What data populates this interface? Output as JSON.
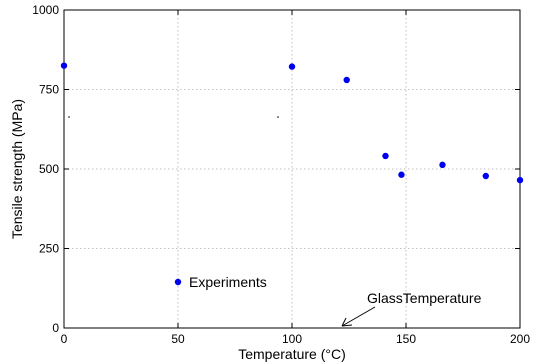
{
  "chart_data": {
    "type": "scatter",
    "xlabel": "Temperature (°C)",
    "ylabel": "Tensile strength (MPa)",
    "xlim": [
      0,
      200
    ],
    "ylim": [
      0,
      1000
    ],
    "xticks": [
      0,
      50,
      100,
      150,
      200
    ],
    "yticks": [
      0,
      250,
      500,
      750,
      1000
    ],
    "grid": true,
    "series": [
      {
        "name": "Experiments",
        "color": "#0000ee",
        "points": [
          {
            "x": 0,
            "y": 825
          },
          {
            "x": 100,
            "y": 822
          },
          {
            "x": 124,
            "y": 780
          },
          {
            "x": 141,
            "y": 541
          },
          {
            "x": 148,
            "y": 482
          },
          {
            "x": 166,
            "y": 513
          },
          {
            "x": 185,
            "y": 478
          },
          {
            "x": 200,
            "y": 465
          }
        ]
      }
    ],
    "legend": {
      "label": "Experiments",
      "placement": "bottom-left"
    },
    "annotation": {
      "text": "GlassTemperature",
      "x": 122,
      "y": 0
    }
  }
}
